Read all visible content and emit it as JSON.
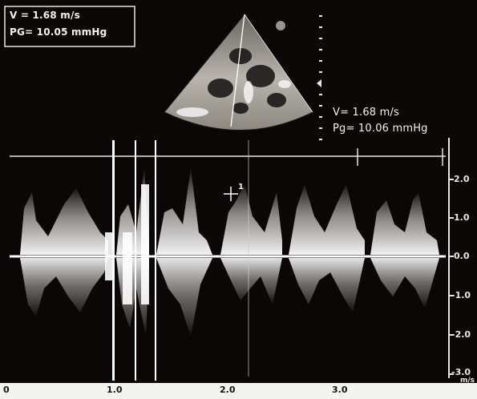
{
  "top_readout": {
    "v_line": "V  = 1.68 m/s",
    "pg_line": "PG= 10.05 mmHg"
  },
  "right_readout": {
    "v_line": "V= 1.68 m/s",
    "pg_line": "Pg= 10.06 mmHg"
  },
  "cursor_marker": "1",
  "velocity_scale": {
    "ticks": [
      "2.0",
      "1.0",
      "0.0",
      "-1.0",
      "-2.0",
      "-3.0"
    ],
    "unit": "m/s"
  },
  "time_scale": {
    "ticks": [
      "0",
      "1.0",
      "2.0",
      "3.0"
    ]
  },
  "colors": {
    "background": "#0b0706",
    "signal": "#ffffff",
    "bottom_band": "#f3f3f0"
  }
}
